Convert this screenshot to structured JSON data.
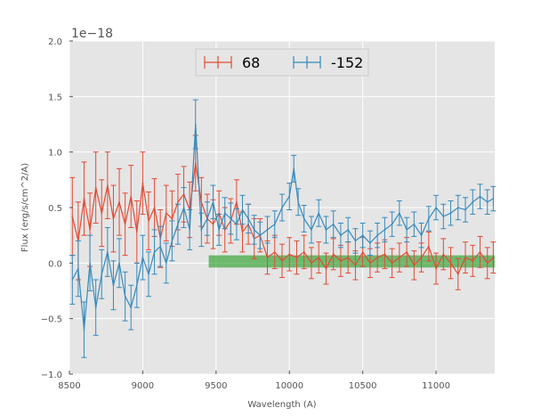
{
  "chart_data": {
    "type": "line",
    "title": "",
    "xlabel": "Wavelength (A)",
    "ylabel": "Flux (erg/s/cm^2/A)",
    "offset_text": "1e−18",
    "xlim": [
      8500,
      11400
    ],
    "ylim": [
      -1.0,
      2.0
    ],
    "xticks": [
      8500,
      9000,
      9500,
      10000,
      10500,
      11000
    ],
    "xtick_labels": [
      "8500",
      "9000",
      "9500",
      "10000",
      "10500",
      "11000"
    ],
    "yticks": [
      -1.0,
      -0.5,
      0.0,
      0.5,
      1.0,
      1.5,
      2.0
    ],
    "ytick_labels": [
      "−1.0",
      "−0.5",
      "0.0",
      "0.5",
      "1.0",
      "1.5",
      "2.0"
    ],
    "grid": true,
    "legend_position": "top-center",
    "band": {
      "x_start": 9450,
      "x_end": 11400,
      "y_low": -0.04,
      "y_high": 0.07,
      "color": "#2ca02c"
    },
    "series": [
      {
        "name": "68",
        "color": "#e24a33",
        "x": [
          8520,
          8560,
          8600,
          8640,
          8680,
          8720,
          8760,
          8800,
          8840,
          8880,
          8920,
          8960,
          9000,
          9040,
          9080,
          9120,
          9160,
          9200,
          9240,
          9280,
          9320,
          9360,
          9400,
          9440,
          9480,
          9520,
          9560,
          9600,
          9640,
          9680,
          9720,
          9760,
          9800,
          9850,
          9900,
          9950,
          10000,
          10050,
          10100,
          10150,
          10200,
          10250,
          10300,
          10350,
          10400,
          10450,
          10500,
          10550,
          10600,
          10650,
          10700,
          10750,
          10800,
          10850,
          10900,
          10950,
          11000,
          11050,
          11100,
          11150,
          11200,
          11250,
          11300,
          11350,
          11390
        ],
        "y": [
          0.42,
          0.2,
          0.58,
          0.3,
          0.68,
          0.45,
          0.7,
          0.4,
          0.55,
          0.35,
          0.6,
          0.28,
          0.72,
          0.38,
          0.5,
          0.22,
          0.45,
          0.4,
          0.55,
          0.62,
          0.48,
          0.9,
          0.55,
          0.4,
          0.35,
          0.45,
          0.3,
          0.38,
          0.55,
          0.28,
          0.35,
          0.22,
          0.25,
          0.05,
          0.1,
          0.02,
          0.08,
          0.05,
          0.1,
          0.0,
          0.05,
          -0.05,
          0.08,
          0.02,
          0.05,
          -0.02,
          0.1,
          0.0,
          0.05,
          0.08,
          0.0,
          0.05,
          0.1,
          -0.02,
          0.05,
          0.15,
          -0.05,
          0.08,
          0.0,
          -0.1,
          0.05,
          0.02,
          0.1,
          0.0,
          0.05
        ],
        "errors": [
          0.35,
          0.35,
          0.33,
          0.33,
          0.32,
          0.3,
          0.3,
          0.3,
          0.3,
          0.28,
          0.28,
          0.28,
          0.28,
          0.26,
          0.26,
          0.26,
          0.25,
          0.25,
          0.25,
          0.25,
          0.25,
          0.25,
          0.22,
          0.22,
          0.22,
          0.2,
          0.2,
          0.2,
          0.2,
          0.18,
          0.18,
          0.18,
          0.15,
          0.15,
          0.15,
          0.15,
          0.15,
          0.15,
          0.15,
          0.14,
          0.14,
          0.14,
          0.14,
          0.14,
          0.14,
          0.13,
          0.13,
          0.13,
          0.13,
          0.13,
          0.13,
          0.13,
          0.13,
          0.13,
          0.13,
          0.13,
          0.14,
          0.14,
          0.14,
          0.14,
          0.14,
          0.14,
          0.14,
          0.14,
          0.14
        ]
      },
      {
        "name": "-152",
        "color": "#348abd",
        "x": [
          8520,
          8560,
          8600,
          8640,
          8680,
          8720,
          8760,
          8800,
          8840,
          8880,
          8920,
          8960,
          9000,
          9040,
          9080,
          9120,
          9160,
          9200,
          9240,
          9280,
          9320,
          9360,
          9400,
          9440,
          9480,
          9520,
          9560,
          9600,
          9640,
          9680,
          9720,
          9760,
          9800,
          9850,
          9900,
          9950,
          10000,
          10030,
          10060,
          10100,
          10150,
          10200,
          10250,
          10300,
          10350,
          10400,
          10450,
          10500,
          10550,
          10600,
          10650,
          10700,
          10750,
          10800,
          10850,
          10900,
          10950,
          11000,
          11050,
          11100,
          11150,
          11200,
          11250,
          11300,
          11350,
          11390
        ],
        "y": [
          -0.15,
          -0.05,
          -0.6,
          0.0,
          -0.4,
          -0.1,
          0.1,
          -0.2,
          0.0,
          -0.3,
          -0.4,
          -0.2,
          0.05,
          -0.1,
          0.1,
          0.15,
          0.0,
          0.2,
          0.35,
          0.5,
          0.3,
          1.25,
          0.3,
          0.4,
          0.55,
          0.3,
          0.45,
          0.4,
          0.35,
          0.48,
          0.4,
          0.3,
          0.25,
          0.3,
          0.35,
          0.5,
          0.6,
          0.85,
          0.55,
          0.4,
          0.3,
          0.45,
          0.3,
          0.35,
          0.25,
          0.3,
          0.2,
          0.25,
          0.18,
          0.25,
          0.3,
          0.35,
          0.45,
          0.3,
          0.35,
          0.25,
          0.4,
          0.5,
          0.42,
          0.45,
          0.5,
          0.48,
          0.55,
          0.6,
          0.55,
          0.58
        ],
        "errors": [
          0.22,
          0.25,
          0.25,
          0.25,
          0.25,
          0.22,
          0.22,
          0.22,
          0.22,
          0.22,
          0.2,
          0.2,
          0.2,
          0.2,
          0.2,
          0.18,
          0.18,
          0.18,
          0.18,
          0.18,
          0.18,
          0.22,
          0.15,
          0.15,
          0.15,
          0.14,
          0.14,
          0.14,
          0.14,
          0.13,
          0.13,
          0.13,
          0.12,
          0.12,
          0.12,
          0.12,
          0.12,
          0.12,
          0.12,
          0.12,
          0.12,
          0.12,
          0.12,
          0.12,
          0.11,
          0.11,
          0.11,
          0.11,
          0.11,
          0.11,
          0.11,
          0.11,
          0.11,
          0.11,
          0.11,
          0.11,
          0.11,
          0.11,
          0.11,
          0.11,
          0.11,
          0.11,
          0.11,
          0.11,
          0.11,
          0.11
        ]
      }
    ]
  }
}
